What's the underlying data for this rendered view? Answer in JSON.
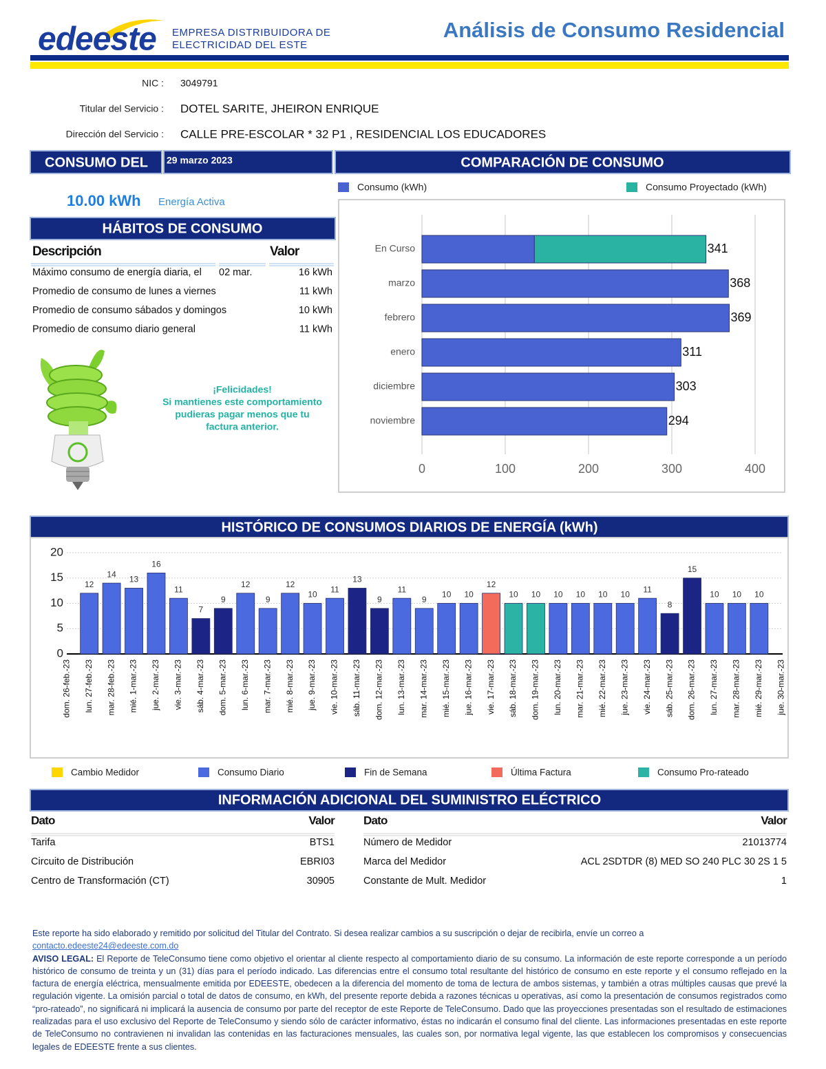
{
  "header": {
    "logo": "edeeste",
    "company_line1": "EMPRESA DISTRIBUIDORA DE",
    "company_line2": "ELECTRICIDAD DEL ESTE",
    "title": "Análisis de Consumo Residencial"
  },
  "customer": [
    {
      "label": "NIC :",
      "value": "3049791"
    },
    {
      "label": "Titular del Servicio :",
      "value": "DOTEL SARITE, JHEIRON ENRIQUE"
    },
    {
      "label": "Dirección del Servicio :",
      "value": "CALLE PRE-ESCOLAR * 32 P1 , RESIDENCIAL LOS EDUCADORES"
    }
  ],
  "consumption": {
    "heading": "CONSUMO DEL",
    "date": "29 marzo 2023",
    "value": "10.00 kWh",
    "note": "Energía Activa"
  },
  "habits": {
    "heading": "HÁBITOS DE CONSUMO",
    "columns": [
      "Descripción",
      "Valor"
    ],
    "rows": [
      {
        "description": "Máximo consumo de energía diaria, el",
        "date": "02 mar.",
        "value": "16 kWh"
      },
      {
        "description": "Promedio de consumo de lunes a viernes",
        "value": "11 kWh"
      },
      {
        "description": "Promedio de consumo sábados y domingos",
        "value": "10 kWh"
      },
      {
        "description": "Promedio de consumo diario general",
        "value": "11 kWh"
      }
    ]
  },
  "tip": [
    "¡Felicidades!",
    "Si mantienes este comportamiento",
    "pudieras pagar menos que tu",
    "factura anterior."
  ],
  "chart_data": [
    {
      "type": "hbar",
      "title": "COMPARACIÓN DE CONSUMO",
      "categories": [
        "En Curso",
        "marzo",
        "febrero",
        "enero",
        "diciembre",
        "noviembre"
      ],
      "series": [
        {
          "name": "Consumo (kWh)",
          "color": "#4a63d2",
          "values": [
            135,
            368,
            369,
            311,
            303,
            294
          ]
        },
        {
          "name": "Consumo Proyectado (kWh)",
          "color": "#2ab3a3",
          "values": [
            206,
            null,
            null,
            null,
            null,
            null
          ]
        }
      ],
      "totals": [
        341,
        368,
        369,
        311,
        303,
        294
      ],
      "xlim": [
        0,
        400
      ],
      "xticks": [
        0,
        100,
        200,
        300,
        400
      ],
      "grid": true
    },
    {
      "type": "bar",
      "title": "HISTÓRICO DE CONSUMOS DIARIOS DE ENERGÍA (kWh)",
      "categories": [
        "dom. 26-feb.-23",
        "lun. 27-feb.-23",
        "mar. 28-feb.-23",
        "mié. 1-mar.-23",
        "jue. 2-mar.-23",
        "vie. 3-mar.-23",
        "sáb. 4-mar.-23",
        "dom. 5-mar.-23",
        "lun. 6-mar.-23",
        "mar. 7-mar.-23",
        "mié. 8-mar.-23",
        "jue. 9-mar.-23",
        "vie. 10-mar.-23",
        "sáb. 11-mar.-23",
        "dom. 12-mar.-23",
        "lun. 13-mar.-23",
        "mar. 14-mar.-23",
        "mié. 15-mar.-23",
        "jue. 16-mar.-23",
        "vie. 17-mar.-23",
        "sáb. 18-mar.-23",
        "dom. 19-mar.-23",
        "lun. 20-mar.-23",
        "mar. 21-mar.-23",
        "mié. 22-mar.-23",
        "jue. 23-mar.-23",
        "vie. 24-mar.-23",
        "sáb. 25-mar.-23",
        "dom. 26-mar.-23",
        "lun. 27-mar.-23",
        "mar. 28-mar.-23",
        "mié. 29-mar.-23",
        "jue. 30-mar.-23"
      ],
      "values": [
        null,
        12,
        14,
        13,
        16,
        11,
        7,
        9,
        12,
        9,
        12,
        10,
        11,
        13,
        9,
        11,
        9,
        10,
        10,
        12,
        10,
        10,
        10,
        10,
        10,
        10,
        11,
        8,
        15,
        10,
        10,
        10,
        null
      ],
      "bar_colors": [
        null,
        "#4b6ae0",
        "#4b6ae0",
        "#4b6ae0",
        "#4b6ae0",
        "#4b6ae0",
        "#1c2585",
        "#1c2585",
        "#4b6ae0",
        "#4b6ae0",
        "#4b6ae0",
        "#4b6ae0",
        "#4b6ae0",
        "#1c2585",
        "#1c2585",
        "#4b6ae0",
        "#4b6ae0",
        "#4b6ae0",
        "#4b6ae0",
        "#f26b5b",
        "#2bb3a6",
        "#2bb3a6",
        "#4b6ae0",
        "#4b6ae0",
        "#4b6ae0",
        "#4b6ae0",
        "#4b6ae0",
        "#1c2585",
        "#1c2585",
        "#4b6ae0",
        "#4b6ae0",
        "#4b6ae0",
        null
      ],
      "legend": [
        {
          "name": "Cambio Medidor",
          "color": "#ffd600"
        },
        {
          "name": "Consumo  Diario",
          "color": "#4b6ae0"
        },
        {
          "name": "Fin de Semana",
          "color": "#1c2585"
        },
        {
          "name": "Última Factura",
          "color": "#f26b5b"
        },
        {
          "name": "Consumo Pro-rateado",
          "color": "#2bb3a6"
        }
      ],
      "ylim": [
        0,
        20
      ],
      "yticks": [
        0,
        5,
        10,
        15,
        20
      ],
      "grid": true
    }
  ],
  "info": {
    "heading": "INFORMACIÓN ADICIONAL DEL SUMINISTRO ELÉCTRICO",
    "tables": [
      {
        "columns": [
          "Dato",
          "Valor"
        ],
        "rows": [
          [
            "Tarifa",
            "BTS1"
          ],
          [
            "Circuito de Distribución",
            "EBRI03"
          ],
          [
            "Centro de Transformación (CT)",
            "30905"
          ]
        ]
      },
      {
        "columns": [
          "Dato",
          "Valor"
        ],
        "rows": [
          [
            "Número de Medidor",
            "21013774"
          ],
          [
            "Marca del Medidor",
            "ACL 2SDTDR (8) MED SO 240 PLC 30 2S 1 5"
          ],
          [
            "Constante de Mult. Medidor",
            "1"
          ]
        ]
      }
    ]
  },
  "footer": {
    "intro": "Este reporte ha sido elaborado y remitido por solicitud del Titular del Contrato. Si desea realizar cambios a su suscripción o dejar de recibirla, envíe un correo a",
    "email": "contacto.edeeste24@edeeste.com.do",
    "legal_label": "AVISO LEGAL:",
    "legal_text": "El Reporte de TeleConsumo tiene como objetivo el orientar al cliente respecto al comportamiento diario de su consumo. La información de este reporte corresponde a un período histórico de consumo de treinta y un (31) días para el período indicado. Las diferencias entre el consumo total resultante del histórico de consumo en este reporte y el consumo reflejado en la factura de energía eléctrica, mensualmente emitida por EDEESTE, obedecen a la diferencia del momento de toma de lectura de ambos sistemas, y también a otras múltiples causas que prevé la regulación vigente. La omisión parcial o total de datos de consumo, en kWh, del presente reporte debida a razones técnicas u operativas, así como la presentación de consumos registrados como “pro-rateado”, no significará ni implicará la ausencia de consumo por parte del receptor de este Reporte de TeleConsumo. Dado que las proyecciones presentadas son el resultado de estimaciones realizadas para el uso exclusivo del Reporte de TeleConsumo y siendo sólo de carácter informativo, éstas no indicarán el consumo final del cliente. Las informaciones presentadas en este reporte de TeleConsumo no contravienen ni invalidan las contenidas en las facturaciones mensuales, las cuales son, por normativa legal vigente, las que establecen los compromisos y consecuencias legales de EDEESTE frente a sus clientes."
  }
}
